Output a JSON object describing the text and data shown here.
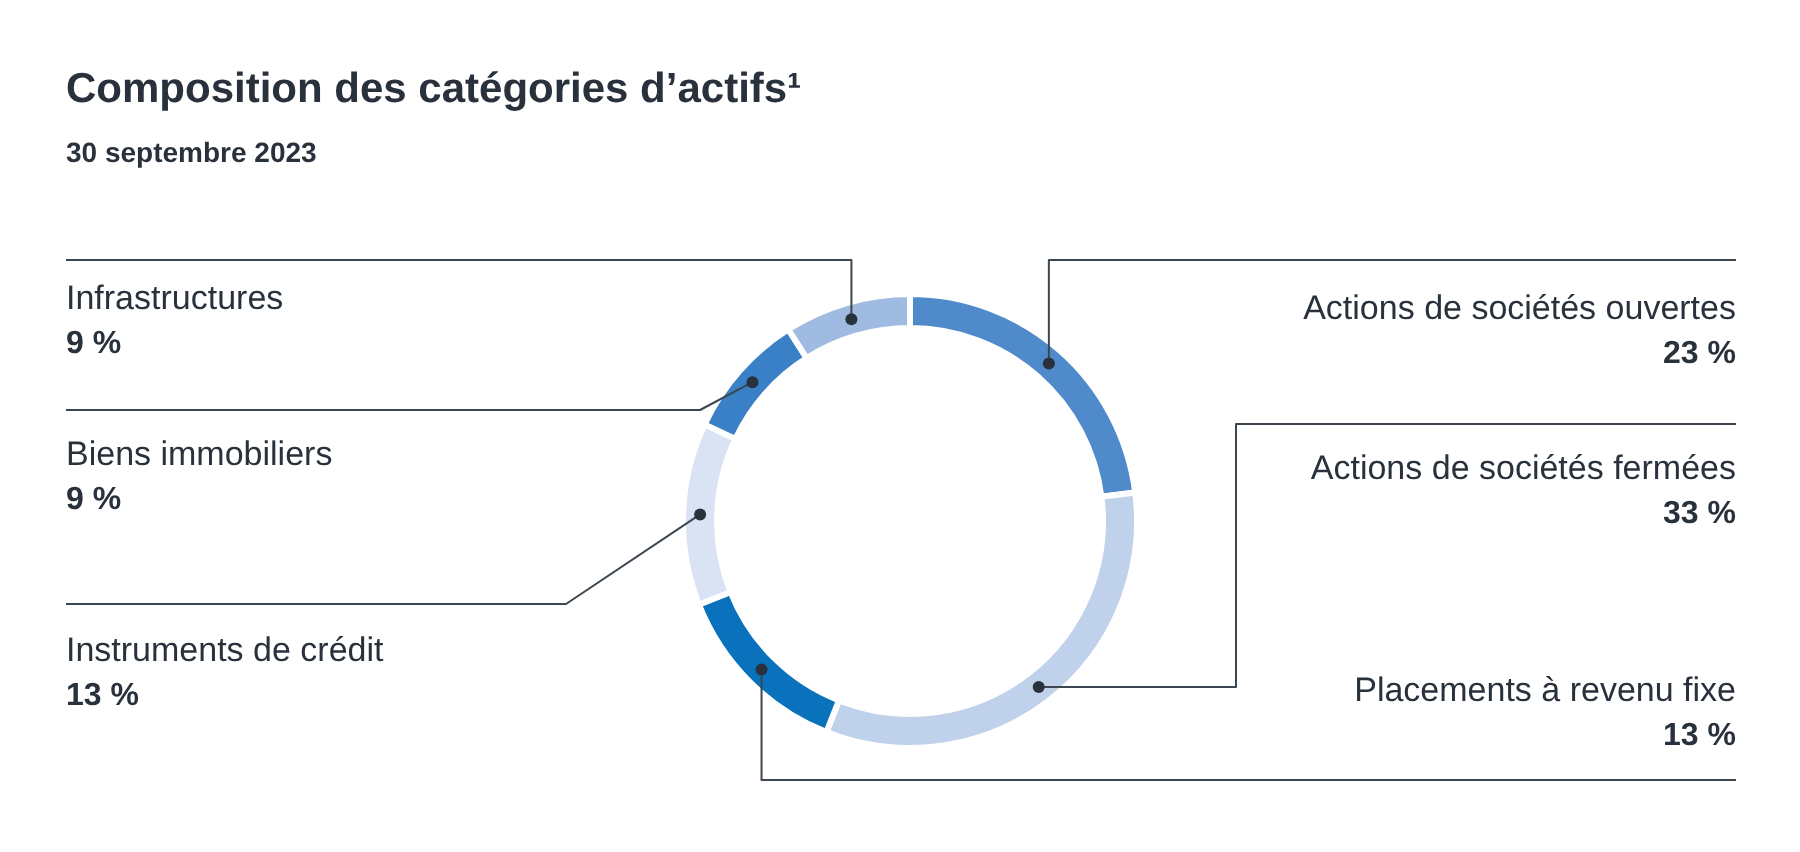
{
  "chart_data": {
    "type": "donut",
    "title": "Composition des catégories d’actifs¹",
    "subtitle": "30 septembre 2023",
    "categories": [
      "Actions de sociétés ouvertes",
      "Actions de sociétés fermées",
      "Placements à revenu fixe",
      "Instruments de crédit",
      "Biens immobiliers",
      "Infrastructures"
    ],
    "values": [
      23,
      33,
      13,
      13,
      9,
      9
    ],
    "value_labels": [
      "23 %",
      "33 %",
      "13 %",
      "13 %",
      "9 %",
      "9 %"
    ],
    "colors": [
      "#4f8bcb",
      "#c0d1eb",
      "#0a72bd",
      "#d9e3f3",
      "#3a80c6",
      "#9fbbe2"
    ],
    "legend": false
  }
}
